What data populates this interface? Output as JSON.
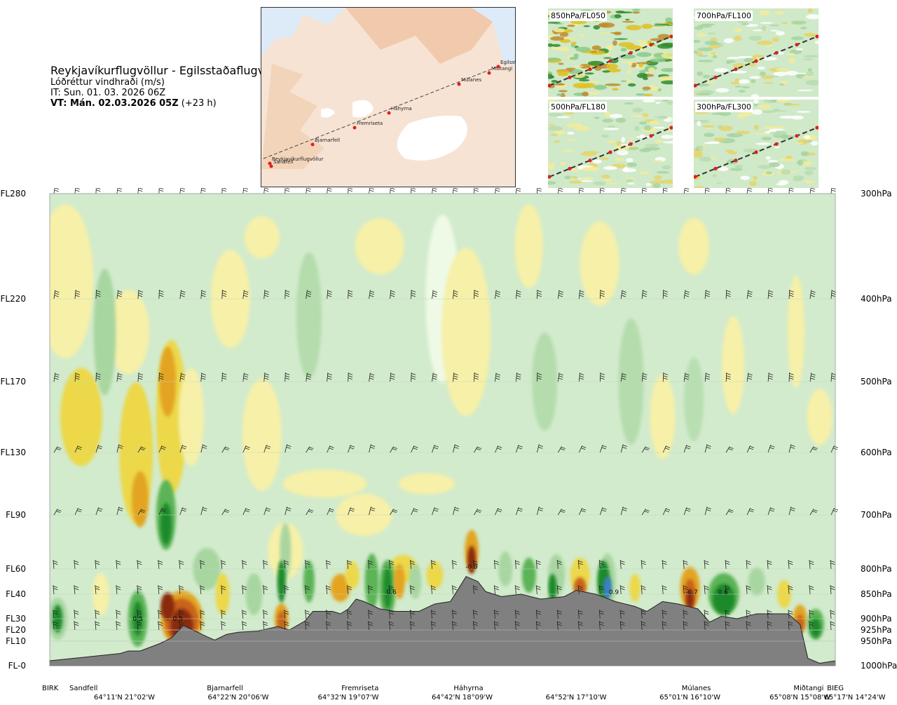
{
  "header": {
    "title": "Reykjavíkurflugvöllur - Egilsstaðaflugvöllur",
    "variable": "Lóðréttur vindhraði (m/s)",
    "issue_time": "IT: Sun. 01. 03. 2026 06Z",
    "valid_label": "VT: Mán. 02.03.2026 05Z",
    "valid_offset": "(+23 h)"
  },
  "map": {
    "waypoints": [
      "Reykjavíkurflugvöllur",
      "Sandfell",
      "Bjarnarfell",
      "Fremriseta",
      "Háhyrna",
      "Múlanes",
      "Miðtangi",
      "Egilsst"
    ]
  },
  "mini_maps": [
    {
      "label": "850hPa/FL050"
    },
    {
      "label": "700hPa/FL100"
    },
    {
      "label": "500hPa/FL180"
    },
    {
      "label": "300hPa/FL300"
    }
  ],
  "chart_data": {
    "type": "heatmap",
    "variable": "Lóðréttur vindhraði (m/s)",
    "flight_levels": [
      "FL280",
      "FL220",
      "FL170",
      "FL130",
      "FL90",
      "FL60",
      "FL40",
      "FL30",
      "FL20",
      "FL10",
      "FL-0"
    ],
    "pressure_levels": [
      "300hPa",
      "400hPa",
      "500hPa",
      "600hPa",
      "700hPa",
      "800hPa",
      "850hPa",
      "900hPa",
      "925hPa",
      "950hPa",
      "1000hPa"
    ],
    "fl_values": [
      280,
      220,
      170,
      130,
      90,
      60,
      40,
      30,
      20,
      10,
      0
    ],
    "place_labels": [
      "BIRK",
      "Sandfell",
      "Bjarnarfell",
      "Fremriseta",
      "Háhyrna",
      "Múlanes",
      "Miðtangi",
      "BIEG"
    ],
    "place_fractions": [
      0.0,
      0.03,
      0.223,
      0.395,
      0.533,
      0.823,
      0.966,
      1.0
    ],
    "coordinates": [
      "64°11'N 21°02'W",
      "64°22'N 20°06'W",
      "64°32'N 19°07'W",
      "64°42'N 18°09'W",
      "64°52'N 17°10'W",
      "65°01'N 16°10'W",
      "65°08'N 15°08'W",
      "65°17'N 14°24'W"
    ],
    "coordinate_fractions": [
      0.095,
      0.24,
      0.38,
      0.525,
      0.67,
      0.815,
      0.955,
      1.04
    ],
    "contour_labels": [
      {
        "text": "0.5",
        "x": 0.112,
        "fl": 28
      },
      {
        "text": "0.5",
        "x": 0.163,
        "fl": 28
      },
      {
        "text": "0.6",
        "x": 0.435,
        "fl": 40
      },
      {
        "text": "-0.9",
        "x": 0.537,
        "fl": 60
      },
      {
        "text": "0.9",
        "x": 0.718,
        "fl": 40
      },
      {
        "text": "-0.7",
        "x": 0.817,
        "fl": 40
      },
      {
        "text": "0.6",
        "x": 0.857,
        "fl": 40
      }
    ],
    "terrain_fl": [
      [
        0,
        2
      ],
      [
        0.03,
        3
      ],
      [
        0.06,
        4
      ],
      [
        0.09,
        5
      ],
      [
        0.1,
        6
      ],
      [
        0.115,
        6
      ],
      [
        0.14,
        9
      ],
      [
        0.155,
        13
      ],
      [
        0.17,
        24
      ],
      [
        0.185,
        19
      ],
      [
        0.2,
        14
      ],
      [
        0.21,
        11
      ],
      [
        0.225,
        16
      ],
      [
        0.24,
        18
      ],
      [
        0.265,
        19
      ],
      [
        0.29,
        23
      ],
      [
        0.305,
        20
      ],
      [
        0.325,
        28
      ],
      [
        0.335,
        33
      ],
      [
        0.36,
        33
      ],
      [
        0.37,
        32
      ],
      [
        0.38,
        34
      ],
      [
        0.39,
        38
      ],
      [
        0.4,
        37
      ],
      [
        0.42,
        34
      ],
      [
        0.44,
        33
      ],
      [
        0.47,
        33
      ],
      [
        0.49,
        36
      ],
      [
        0.51,
        37
      ],
      [
        0.52,
        44
      ],
      [
        0.53,
        54
      ],
      [
        0.545,
        50
      ],
      [
        0.555,
        42
      ],
      [
        0.575,
        39
      ],
      [
        0.6,
        40
      ],
      [
        0.625,
        38
      ],
      [
        0.655,
        39
      ],
      [
        0.67,
        43
      ],
      [
        0.695,
        40
      ],
      [
        0.72,
        37
      ],
      [
        0.745,
        35
      ],
      [
        0.76,
        33
      ],
      [
        0.78,
        37
      ],
      [
        0.8,
        36
      ],
      [
        0.825,
        34
      ],
      [
        0.84,
        27
      ],
      [
        0.855,
        31
      ],
      [
        0.875,
        30
      ],
      [
        0.9,
        32
      ],
      [
        0.94,
        32
      ],
      [
        0.955,
        25
      ],
      [
        0.96,
        10
      ],
      [
        0.965,
        3
      ],
      [
        0.98,
        1
      ],
      [
        1.0,
        2
      ]
    ]
  }
}
